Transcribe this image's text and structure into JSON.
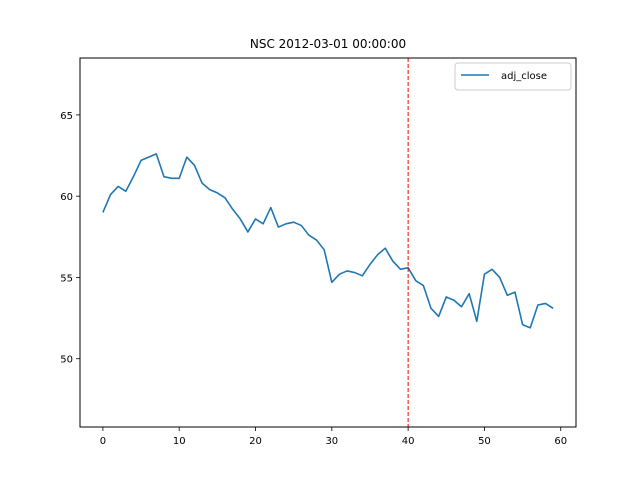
{
  "chart_data": {
    "type": "line",
    "title": "NSC 2012-03-01 00:00:00",
    "xlabel": "",
    "ylabel": "",
    "xlim": [
      -3,
      62
    ],
    "ylim": [
      45.8,
      68.5
    ],
    "xticks": [
      0,
      10,
      20,
      30,
      40,
      50,
      60
    ],
    "yticks": [
      50,
      55,
      60,
      65
    ],
    "grid": false,
    "legend": {
      "placement": "top-right",
      "entries": [
        "adj_close"
      ]
    },
    "series": [
      {
        "name": "adj_close",
        "color": "#1f77b4",
        "x": [
          0,
          1,
          2,
          3,
          4,
          5,
          6,
          7,
          8,
          9,
          10,
          11,
          12,
          13,
          14,
          15,
          16,
          17,
          18,
          19,
          20,
          21,
          22,
          23,
          24,
          25,
          26,
          27,
          28,
          29,
          30,
          31,
          32,
          33,
          34,
          35,
          36,
          37,
          38,
          39,
          40,
          41,
          42,
          43,
          44,
          45,
          46,
          47,
          48,
          49,
          50,
          51,
          52,
          53,
          54,
          55,
          56,
          57,
          58,
          59
        ],
        "values": [
          59.0,
          60.1,
          60.6,
          60.3,
          61.2,
          62.2,
          62.4,
          62.6,
          61.2,
          61.1,
          61.1,
          62.4,
          61.9,
          60.8,
          60.4,
          60.2,
          59.9,
          59.2,
          58.6,
          57.8,
          58.6,
          58.3,
          59.3,
          58.1,
          58.3,
          58.4,
          58.2,
          57.6,
          57.3,
          56.7,
          54.7,
          55.2,
          55.4,
          55.3,
          55.1,
          55.8,
          56.4,
          56.8,
          56.0,
          55.5,
          55.6,
          54.8,
          54.5,
          53.1,
          52.6,
          53.8,
          53.6,
          53.2,
          54.0,
          52.3,
          55.2,
          55.5,
          55.0,
          53.9,
          54.1,
          52.1,
          51.9,
          53.3,
          53.4,
          53.1
        ]
      }
    ],
    "annotations": [
      {
        "type": "vline",
        "x": 40,
        "color": "#ff0000",
        "style": "dashed"
      }
    ]
  }
}
